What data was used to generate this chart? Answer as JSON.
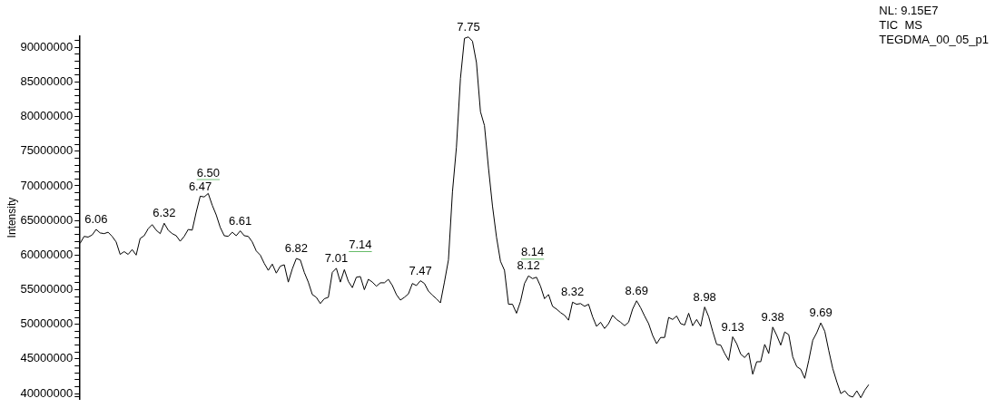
{
  "chart_data": {
    "type": "line",
    "ylabel": "Intensity",
    "categories": [
      null,
      null,
      null,
      null,
      null,
      null,
      null,
      null,
      null,
      null,
      null,
      null,
      null,
      null,
      null,
      null,
      null,
      null,
      null,
      null,
      null,
      null,
      null,
      null,
      null,
      null,
      null,
      null,
      null,
      null,
      null,
      null,
      null,
      null,
      null,
      null,
      null,
      null,
      null,
      null,
      null,
      null,
      null,
      null,
      null,
      null,
      null,
      null,
      null,
      null,
      null,
      null,
      null,
      null,
      null,
      null,
      null,
      null,
      null,
      null,
      null,
      null,
      null,
      null,
      null,
      null,
      null,
      null,
      null,
      null,
      null,
      null,
      null,
      null,
      null,
      null,
      null,
      null,
      null,
      null,
      null,
      null,
      null,
      null,
      null,
      null,
      null,
      null,
      null,
      null,
      null,
      null,
      null,
      null,
      null,
      null,
      null,
      null,
      null,
      null,
      null,
      null,
      null,
      null,
      null,
      null,
      null,
      null,
      null,
      null,
      null,
      null,
      null,
      null,
      null,
      null,
      null,
      null,
      null,
      null,
      null,
      null,
      null,
      null,
      null,
      null,
      null,
      null,
      null,
      null,
      null,
      null,
      null,
      null,
      null,
      null,
      null,
      null,
      null,
      null,
      null,
      null,
      null,
      null,
      null,
      null,
      null,
      null,
      null,
      null,
      null,
      null,
      null,
      null,
      null,
      null,
      null,
      null,
      null,
      null,
      null,
      null,
      null,
      null,
      null,
      null,
      null,
      null,
      null,
      null,
      null,
      null,
      null,
      null,
      null,
      null,
      null,
      null,
      null,
      null,
      null,
      null,
      null,
      null,
      null,
      null,
      null,
      null,
      null,
      null,
      null,
      null,
      null,
      null,
      null,
      null,
      null,
      null
    ],
    "series": [
      {
        "color": "#000000",
        "values": [
          61700000,
          62700000,
          62600000,
          62900000,
          63700000,
          63200000,
          63100000,
          63300000,
          62700000,
          61900000,
          60100000,
          60500000,
          60100000,
          60800000,
          60000000,
          62400000,
          62800000,
          63800000,
          64400000,
          63600000,
          63100000,
          64600000,
          63600000,
          63100000,
          62800000,
          62000000,
          62700000,
          63700000,
          63600000,
          66200000,
          68500000,
          68400000,
          68900000,
          67200000,
          65800000,
          64000000,
          62800000,
          62700000,
          63300000,
          62800000,
          63500000,
          62800000,
          62700000,
          61900000,
          60600000,
          60000000,
          58800000,
          57800000,
          58700000,
          57400000,
          58400000,
          58600000,
          56100000,
          58000000,
          59500000,
          59300000,
          57500000,
          56100000,
          54300000,
          53900000,
          53000000,
          53700000,
          53900000,
          57500000,
          58100000,
          56100000,
          57900000,
          56200000,
          55300000,
          56800000,
          56900000,
          55000000,
          56500000,
          56100000,
          55500000,
          56000000,
          56000000,
          56500000,
          55600000,
          54300000,
          53500000,
          53900000,
          54400000,
          55900000,
          55600000,
          56300000,
          55900000,
          54800000,
          54200000,
          53700000,
          53100000,
          56100000,
          59300000,
          69100000,
          75600000,
          85500000,
          91300000,
          91500000,
          90900000,
          87800000,
          80700000,
          78700000,
          72600000,
          67100000,
          62600000,
          59100000,
          57800000,
          52900000,
          52900000,
          51600000,
          53300000,
          55900000,
          57000000,
          56600000,
          56800000,
          55500000,
          53700000,
          54300000,
          52600000,
          52200000,
          51700000,
          51300000,
          50600000,
          53200000,
          52900000,
          53000000,
          52600000,
          52900000,
          51100000,
          49700000,
          50300000,
          49400000,
          50100000,
          51300000,
          50700000,
          50300000,
          49800000,
          50300000,
          52200000,
          53400000,
          52400000,
          51200000,
          50100000,
          48400000,
          47200000,
          48100000,
          48100000,
          51000000,
          50700000,
          51200000,
          50100000,
          49900000,
          51600000,
          49800000,
          50700000,
          49700000,
          52500000,
          51100000,
          49000000,
          47100000,
          47000000,
          45800000,
          44800000,
          48200000,
          47200000,
          45700000,
          45200000,
          45900000,
          42800000,
          44600000,
          44600000,
          47100000,
          45800000,
          49600000,
          48400000,
          47000000,
          48900000,
          48500000,
          45300000,
          43900000,
          43500000,
          42200000,
          44800000,
          47700000,
          48800000,
          50200000,
          49000000,
          46200000,
          43600000,
          41700000,
          40000000,
          40400000,
          39700000,
          39500000,
          40400000,
          39400000,
          40500000,
          41300000
        ]
      }
    ],
    "ylim": [
      39200000,
      91600000
    ],
    "yticks": [
      {
        "value": 39500000,
        "label": null
      },
      40000000,
      {
        "value": 41000000,
        "label": null
      },
      {
        "value": 42000000,
        "label": null
      },
      {
        "value": 43000000,
        "label": null
      },
      {
        "value": 44000000,
        "label": null
      },
      45000000,
      {
        "value": 46000000,
        "label": null
      },
      {
        "value": 47000000,
        "label": null
      },
      {
        "value": 48000000,
        "label": null
      },
      {
        "value": 49000000,
        "label": null
      },
      50000000,
      {
        "value": 51000000,
        "label": null
      },
      {
        "value": 52000000,
        "label": null
      },
      {
        "value": 53000000,
        "label": null
      },
      {
        "value": 54000000,
        "label": null
      },
      55000000,
      {
        "value": 56000000,
        "label": null
      },
      {
        "value": 57000000,
        "label": null
      },
      {
        "value": 58000000,
        "label": null
      },
      {
        "value": 59000000,
        "label": null
      },
      60000000,
      {
        "value": 61000000,
        "label": null
      },
      {
        "value": 62000000,
        "label": null
      },
      {
        "value": 63000000,
        "label": null
      },
      {
        "value": 64000000,
        "label": null
      },
      65000000,
      {
        "value": 66000000,
        "label": null
      },
      {
        "value": 67000000,
        "label": null
      },
      {
        "value": 68000000,
        "label": null
      },
      {
        "value": 69000000,
        "label": null
      },
      70000000,
      {
        "value": 71000000,
        "label": null
      },
      {
        "value": 72000000,
        "label": null
      },
      {
        "value": 73000000,
        "label": null
      },
      {
        "value": 74000000,
        "label": null
      },
      75000000,
      {
        "value": 76000000,
        "label": null
      },
      {
        "value": 77000000,
        "label": null
      },
      {
        "value": 78000000,
        "label": null
      },
      {
        "value": 79000000,
        "label": null
      },
      80000000,
      {
        "value": 81000000,
        "label": null
      },
      {
        "value": 82000000,
        "label": null
      },
      {
        "value": 83000000,
        "label": null
      },
      {
        "value": 84000000,
        "label": null
      },
      85000000,
      {
        "value": 86000000,
        "label": null
      },
      {
        "value": 87000000,
        "label": null
      },
      {
        "value": 88000000,
        "label": null
      },
      {
        "value": 89000000,
        "label": null
      },
      90000000,
      {
        "value": 91000000,
        "label": null
      }
    ],
    "tick_labels": "y",
    "marker": "none",
    "line_style": "solid",
    "annotations": [
      "NL: 9.15E7",
      "TIC  MS",
      "TEGDMA_00_05_p1",
      {
        "text": "6.06",
        "y": 63700000
      },
      {
        "text": "6.32",
        "y": 64600000
      },
      {
        "text": "6.47",
        "y": 68500000
      },
      {
        "text": "6.50",
        "y": 68900000
      },
      {
        "text": "6.61",
        "y": 63500000
      },
      {
        "text": "6.82",
        "y": 59500000
      },
      {
        "text": "7.01",
        "y": 58100000
      },
      {
        "text": "7.14",
        "y": 56900000
      },
      {
        "text": "7.47",
        "y": 56300000
      },
      {
        "text": "7.75",
        "y": 91500000
      },
      {
        "text": "8.12",
        "y": 57000000
      },
      {
        "text": "8.14",
        "y": 56600000
      },
      {
        "text": "8.32",
        "y": 53200000
      },
      {
        "text": "8.69",
        "y": 53400000
      },
      {
        "text": "8.98",
        "y": 52500000
      },
      {
        "text": "9.13",
        "y": 48200000
      },
      {
        "text": "9.38",
        "y": 49600000
      },
      {
        "text": "9.69",
        "y": 50200000
      }
    ]
  }
}
